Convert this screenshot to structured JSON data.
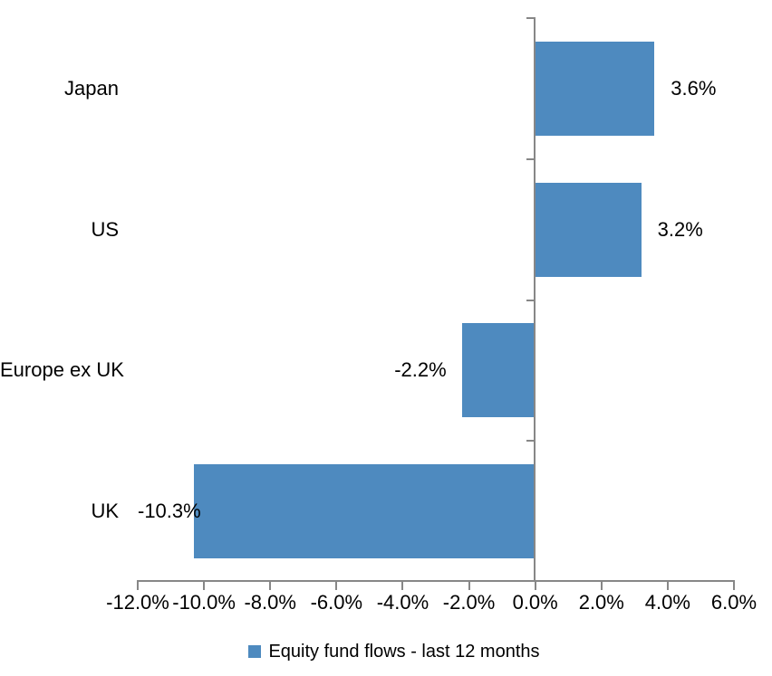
{
  "chart_data": {
    "type": "bar",
    "orientation": "horizontal",
    "title": "",
    "categories": [
      "Japan",
      "US",
      "Europe ex UK",
      "UK"
    ],
    "series": [
      {
        "name": "Equity fund flows - last 12 months",
        "values": [
          3.6,
          3.2,
          -2.2,
          -10.3
        ],
        "data_labels": [
          "3.6%",
          "3.2%",
          "-2.2%",
          "-10.3%"
        ]
      }
    ],
    "xlim": [
      -12,
      6
    ],
    "x_tick_values": [
      -12,
      -10,
      -8,
      -6,
      -4,
      -2,
      0,
      2,
      4,
      6
    ],
    "x_tick_labels": [
      "-12.0%",
      "-10.0%",
      "-8.0%",
      "-6.0%",
      "-4.0%",
      "-2.0%",
      "0.0%",
      "2.0%",
      "4.0%",
      "6.0%"
    ],
    "grid": false,
    "legend_position": "bottom",
    "colors": {
      "bar": "#4E8ABF",
      "axis": "#878787",
      "text": "#000000",
      "background": "#FFFFFF"
    }
  }
}
